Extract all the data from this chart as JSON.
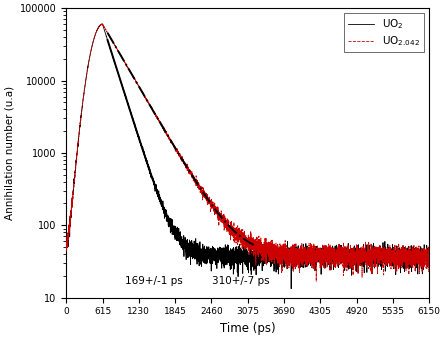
{
  "xlabel": "Time (ps)",
  "ylabel": "Annihilation number (u.a)",
  "xlim": [
    0,
    6150
  ],
  "ylim": [
    10,
    100000
  ],
  "xticks": [
    0,
    615,
    1230,
    1845,
    2460,
    3075,
    3690,
    4305,
    4920,
    5535,
    6150
  ],
  "xtick_labels": [
    "0",
    "615",
    "1230",
    "1845",
    "2460",
    "3075",
    "3690",
    "4305",
    "4920",
    "5535",
    "6150"
  ],
  "legend_label1": "UO$_2$",
  "legend_label2": "UO$_{2.042}$",
  "curve1_color": "#000000",
  "curve2_color": "#cc0000",
  "annotation1_text": "169+/-1 ps",
  "annotation2_text": "310+/-7 ps",
  "peak_t": 615,
  "peak_val": 60000,
  "tau1": 169,
  "tau2": 310,
  "bg": 38,
  "sigma_rise": 150,
  "noise_scale1": 1.0,
  "noise_scale2": 1.1,
  "bg_color": "#ffffff",
  "fit1_start": 700,
  "fit1_end": 2350,
  "fit2_start": 700,
  "fit2_end": 3200
}
